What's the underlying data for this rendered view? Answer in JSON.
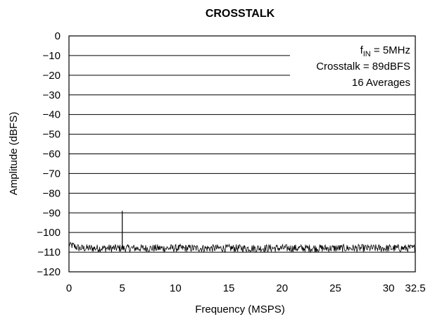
{
  "chart_data": {
    "type": "line",
    "title": "CROSSTALK",
    "xlabel": "Frequency (MSPS)",
    "ylabel": "Amplitude (dBFS)",
    "xlim": [
      0,
      32.5
    ],
    "ylim": [
      -120,
      0
    ],
    "x_ticks": [
      0,
      5,
      10,
      15,
      20,
      25,
      30,
      32.5
    ],
    "x_tick_labels": [
      "0",
      "5",
      "10",
      "15",
      "20",
      "25",
      "30",
      "32.5"
    ],
    "y_ticks": [
      0,
      -10,
      -20,
      -30,
      -40,
      -50,
      -60,
      -70,
      -80,
      -90,
      -100,
      -110,
      -120
    ],
    "y_tick_labels": [
      "0",
      "−10",
      "−20",
      "−30",
      "−40",
      "−50",
      "−60",
      "−70",
      "−80",
      "−90",
      "−100",
      "−110",
      "−120"
    ],
    "grid": "horizontal",
    "annotations": {
      "fin_prefix": "f",
      "fin_sub": "IN",
      "fin_suffix": " = 5MHz",
      "crosstalk": "Crosstalk = 89dBFS",
      "averages": "16 Averages"
    },
    "series": [
      {
        "color": "#000000",
        "noise_floor": -108,
        "noise_floor_start": -106,
        "noise_range": [
          -110,
          -105
        ],
        "spur": {
          "x": 5,
          "y": -89
        }
      }
    ]
  }
}
